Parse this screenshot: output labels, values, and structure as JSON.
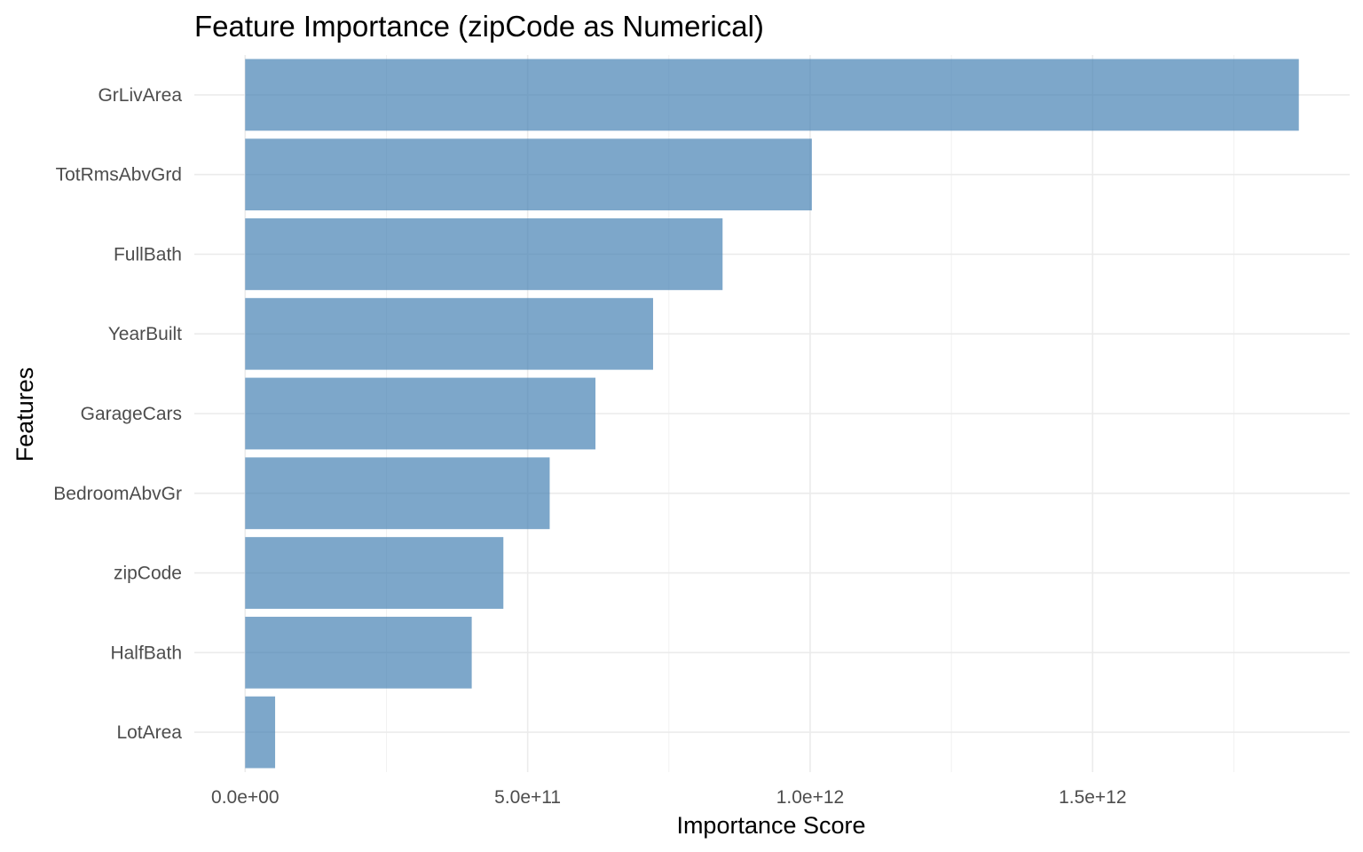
{
  "chart_data": {
    "type": "bar",
    "orientation": "horizontal",
    "title": "Feature Importance (zipCode as Numerical)",
    "xlabel": "Importance Score",
    "ylabel": "Features",
    "categories": [
      "GrLivArea",
      "TotRmsAbvGrd",
      "FullBath",
      "YearBuilt",
      "GarageCars",
      "BedroomAbvGr",
      "zipCode",
      "HalfBath",
      "LotArea"
    ],
    "values": [
      1865000000000.0,
      1003000000000.0,
      845000000000.0,
      722000000000.0,
      620000000000.0,
      539000000000.0,
      457000000000.0,
      401000000000.0,
      53000000000.0
    ],
    "xlim": [
      -90000000000.0,
      1955000000000.0
    ],
    "x_ticks": [
      0,
      500000000000.0,
      1000000000000.0,
      1500000000000.0
    ],
    "x_tick_labels": [
      "0.0e+00",
      "5.0e+11",
      "1.0e+12",
      "1.5e+12"
    ],
    "x_minor_ticks": [
      250000000000.0,
      750000000000.0,
      1250000000000.0,
      1750000000000.0
    ],
    "grid": true,
    "legend": "none",
    "bar_color": "#4682b4",
    "bar_opacity": 0.7
  }
}
